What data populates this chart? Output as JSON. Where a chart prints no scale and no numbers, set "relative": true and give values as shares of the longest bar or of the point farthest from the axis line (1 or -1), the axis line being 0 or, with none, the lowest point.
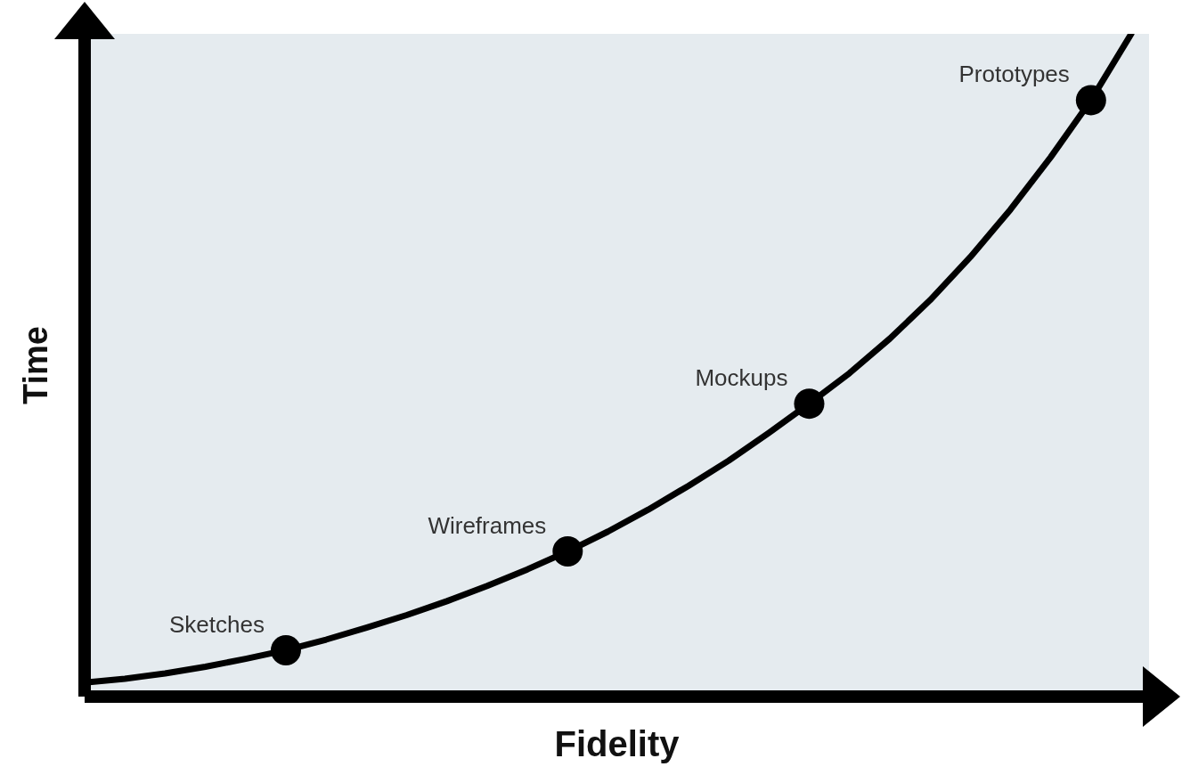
{
  "chart_data": {
    "type": "line",
    "xlabel": "Fidelity",
    "ylabel": "Time",
    "relative": true,
    "marker": "none",
    "line_style": "solid",
    "categories": [
      null,
      null,
      null,
      null,
      null,
      null,
      null,
      null,
      null,
      null,
      null,
      null,
      null,
      null,
      null,
      null,
      null,
      null,
      null,
      null,
      null,
      null,
      null,
      null,
      null,
      null,
      null
    ],
    "series": [
      {
        "color": "#000000",
        "values": [
          0.021,
          0.027,
          0.035,
          0.045,
          0.057,
          0.07,
          0.086,
          0.104,
          0.123,
          0.144,
          0.167,
          0.192,
          0.219,
          0.249,
          0.282,
          0.318,
          0.356,
          0.398,
          0.442,
          0.488,
          0.54,
          0.598,
          0.663,
          0.735,
          0.814,
          0.9,
          1.0
        ]
      },
      {
        "name": "Sketches",
        "color": "#000000",
        "marker": "circle",
        "values": [
          null,
          null,
          null,
          null,
          null,
          0.07,
          null,
          null,
          null,
          null,
          null,
          null,
          null,
          null,
          null,
          null,
          null,
          null,
          null,
          null,
          null,
          null,
          null,
          null,
          null,
          null,
          null
        ]
      },
      {
        "name": "Wireframes",
        "color": "#000000",
        "marker": "circle",
        "values": [
          null,
          null,
          null,
          null,
          null,
          null,
          null,
          null,
          null,
          null,
          null,
          null,
          0.219,
          null,
          null,
          null,
          null,
          null,
          null,
          null,
          null,
          null,
          null,
          null,
          null,
          null,
          null
        ]
      },
      {
        "name": "Mockups",
        "color": "#000000",
        "marker": "circle",
        "values": [
          null,
          null,
          null,
          null,
          null,
          null,
          null,
          null,
          null,
          null,
          null,
          null,
          null,
          null,
          null,
          null,
          null,
          null,
          0.442,
          null,
          null,
          null,
          null,
          null,
          null,
          null,
          null
        ]
      },
      {
        "name": "Prototypes",
        "color": "#000000",
        "marker": "circle",
        "values": [
          null,
          null,
          null,
          null,
          null,
          null,
          null,
          null,
          null,
          null,
          null,
          null,
          null,
          null,
          null,
          null,
          null,
          null,
          null,
          null,
          null,
          null,
          null,
          null,
          null,
          0.9,
          null
        ]
      }
    ]
  }
}
